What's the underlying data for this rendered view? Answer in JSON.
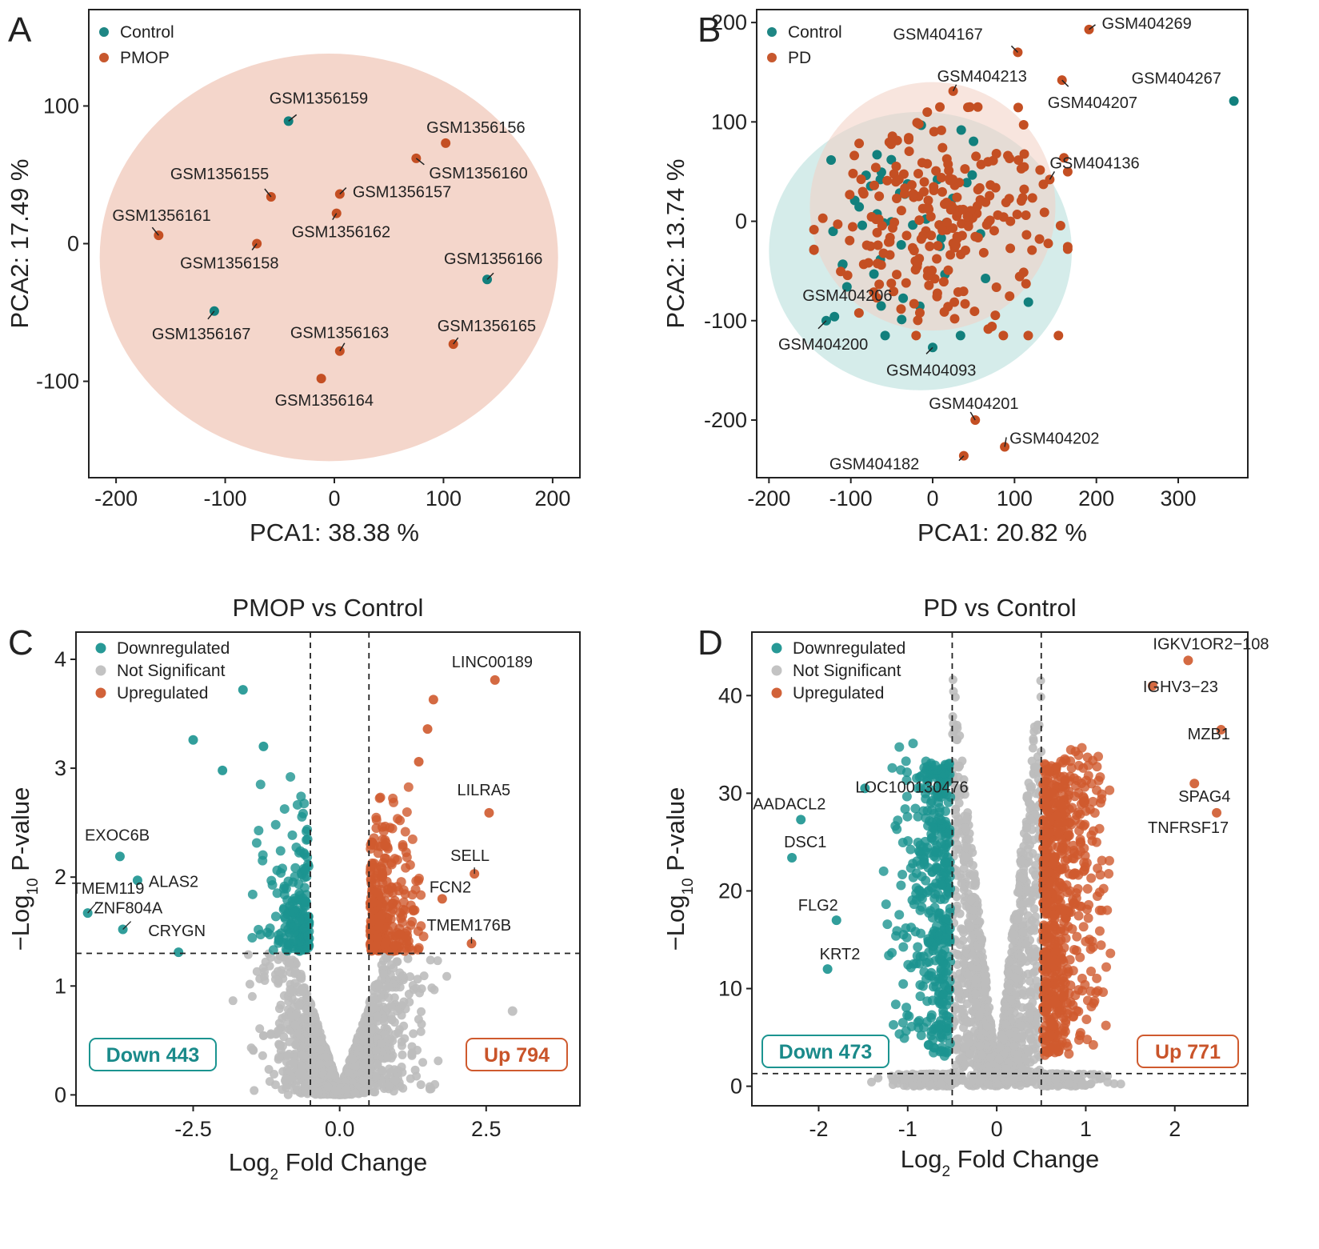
{
  "colors": {
    "control": "#12807d",
    "case": "#c44f23",
    "down": "#1b9490",
    "up": "#cf5a2e",
    "ns": "#bdbdbd",
    "ellipse_case": "#f2cfc2",
    "ellipse_control": "#b3dcd8"
  },
  "chart_data": [
    {
      "panel": "A",
      "type": "scatter",
      "xlabel": "PCA1: 38.38 %",
      "ylabel": "PCA2: 17.49 %",
      "xlim": [
        -225,
        225
      ],
      "ylim": [
        -170,
        170
      ],
      "xticks": [
        "-200",
        "-100",
        "0",
        "100",
        "200"
      ],
      "xtick_values": [
        -200,
        -100,
        0,
        100,
        200
      ],
      "yticks": [
        "-100",
        "0",
        "100"
      ],
      "ytick_values": [
        -100,
        0,
        100
      ],
      "legend": [
        {
          "name": "Control",
          "group": "control"
        },
        {
          "name": "PMOP",
          "group": "case"
        }
      ],
      "ellipses": [
        {
          "group": "case",
          "cx": -5,
          "cy": -10,
          "rx": 210,
          "ry": 148
        }
      ],
      "points": [
        {
          "x": -42,
          "y": 89,
          "group": "control",
          "label": "GSM1356159"
        },
        {
          "x": 102,
          "y": 73,
          "group": "case",
          "label": "GSM1356156"
        },
        {
          "x": 75,
          "y": 62,
          "group": "case",
          "label": "GSM1356160"
        },
        {
          "x": -58,
          "y": 34,
          "group": "case",
          "label": "GSM1356155"
        },
        {
          "x": 5,
          "y": 36,
          "group": "case",
          "label": "GSM1356157"
        },
        {
          "x": 2,
          "y": 22,
          "group": "case",
          "label": "GSM1356162"
        },
        {
          "x": -161,
          "y": 6,
          "group": "case",
          "label": "GSM1356161"
        },
        {
          "x": -71,
          "y": 0,
          "group": "case",
          "label": "GSM1356158"
        },
        {
          "x": 140,
          "y": -26,
          "group": "control",
          "label": "GSM1356166"
        },
        {
          "x": -110,
          "y": -49,
          "group": "control",
          "label": "GSM1356167"
        },
        {
          "x": 5,
          "y": -78,
          "group": "case",
          "label": "GSM1356163"
        },
        {
          "x": 109,
          "y": -73,
          "group": "case",
          "label": "GSM1356165"
        },
        {
          "x": -12,
          "y": -98,
          "group": "case",
          "label": "GSM1356164"
        }
      ]
    },
    {
      "panel": "B",
      "type": "scatter",
      "xlabel": "PCA1: 20.82 %",
      "ylabel": "PCA2: 13.74 %",
      "xlim": [
        -215,
        385
      ],
      "ylim": [
        -258,
        213
      ],
      "xticks": [
        "-200",
        "-100",
        "0",
        "100",
        "200",
        "300"
      ],
      "xtick_values": [
        -200,
        -100,
        0,
        100,
        200,
        300
      ],
      "yticks": [
        "-200",
        "-100",
        "0",
        "100",
        "200"
      ],
      "ytick_values": [
        -200,
        -100,
        0,
        100,
        200
      ],
      "legend": [
        {
          "name": "Control",
          "group": "control"
        },
        {
          "name": "PD",
          "group": "case"
        }
      ],
      "ellipses": [
        {
          "group": "control",
          "cx": -15,
          "cy": -30,
          "rx": 185,
          "ry": 140
        },
        {
          "group": "case",
          "cx": 0,
          "cy": 15,
          "rx": 150,
          "ry": 125
        }
      ],
      "labeled_points": [
        {
          "x": 104,
          "y": 170,
          "group": "case",
          "label": "GSM404167"
        },
        {
          "x": 191,
          "y": 193,
          "group": "case",
          "label": "GSM404269"
        },
        {
          "x": 25,
          "y": 131,
          "group": "case",
          "label": "GSM404213"
        },
        {
          "x": 158,
          "y": 142,
          "group": "case",
          "label": "GSM404207"
        },
        {
          "x": 368,
          "y": 121,
          "group": "control",
          "label": "GSM404267"
        },
        {
          "x": 143,
          "y": 42,
          "group": "case",
          "label": "GSM404136"
        },
        {
          "x": -120,
          "y": -96,
          "group": "control",
          "label": "GSM404206"
        },
        {
          "x": -130,
          "y": -100,
          "group": "control",
          "label": "GSM404200"
        },
        {
          "x": 0,
          "y": -127,
          "group": "control",
          "label": "GSM404093"
        },
        {
          "x": 52,
          "y": -200,
          "group": "case",
          "label": "GSM404201"
        },
        {
          "x": 88,
          "y": -227,
          "group": "case",
          "label": "GSM404202"
        },
        {
          "x": 38,
          "y": -236,
          "group": "case",
          "label": "GSM404182"
        }
      ],
      "point_counts": {
        "case": 235,
        "control": 45
      },
      "case_cloud": {
        "x_mean": 0,
        "x_sd": 65,
        "y_mean": 5,
        "y_sd": 52
      },
      "control_cloud": {
        "x_mean": -40,
        "x_sd": 70,
        "y_mean": -10,
        "y_sd": 55
      }
    },
    {
      "panel": "C",
      "type": "scatter",
      "title": "PMOP vs Control",
      "xlabel": "Log2 Fold Change",
      "ylabel": "-Log10 P-value",
      "xlim": [
        -4.5,
        4.1
      ],
      "ylim": [
        -0.1,
        4.25
      ],
      "xticks": [
        "-2.5",
        "0.0",
        "2.5"
      ],
      "xtick_values": [
        -2.5,
        0,
        2.5
      ],
      "yticks": [
        "0",
        "1",
        "2",
        "3",
        "4"
      ],
      "ytick_values": [
        0,
        1,
        2,
        3,
        4
      ],
      "fc_threshold": 0.5,
      "p_threshold_log": 1.3,
      "legend": [
        {
          "name": "Downregulated",
          "group": "down"
        },
        {
          "name": "Not Significant",
          "group": "ns"
        },
        {
          "name": "Upregulated",
          "group": "up"
        }
      ],
      "counts": {
        "down_label": "Down 443",
        "up_label": "Up 794"
      },
      "point_counts": {
        "down": 200,
        "up": 300,
        "ns": 1600
      },
      "labeled_points": [
        {
          "x": 2.65,
          "y": 3.81,
          "group": "up",
          "label": "LINC00189"
        },
        {
          "x": 2.55,
          "y": 2.59,
          "group": "up",
          "label": "LILRA5"
        },
        {
          "x": 2.3,
          "y": 2.03,
          "group": "up",
          "label": "SELL"
        },
        {
          "x": 1.75,
          "y": 1.8,
          "group": "up",
          "label": "FCN2"
        },
        {
          "x": 2.25,
          "y": 1.39,
          "group": "up",
          "label": "TMEM176B"
        },
        {
          "x": -3.75,
          "y": 2.19,
          "group": "down",
          "label": "EXOC6B"
        },
        {
          "x": -3.45,
          "y": 1.97,
          "group": "down",
          "label": "ALAS2"
        },
        {
          "x": -4.3,
          "y": 1.67,
          "group": "down",
          "label": "TMEM119"
        },
        {
          "x": -3.7,
          "y": 1.52,
          "group": "down",
          "label": "ZNF804A"
        },
        {
          "x": -2.75,
          "y": 1.31,
          "group": "down",
          "label": "CRYGN"
        }
      ],
      "extra_points": [
        {
          "x": -1.65,
          "y": 3.72,
          "group": "down"
        },
        {
          "x": -2.5,
          "y": 3.26,
          "group": "down"
        },
        {
          "x": -1.3,
          "y": 3.2,
          "group": "down"
        },
        {
          "x": -2.0,
          "y": 2.98,
          "group": "down"
        },
        {
          "x": 1.6,
          "y": 3.63,
          "group": "up"
        },
        {
          "x": 1.5,
          "y": 3.36,
          "group": "up"
        },
        {
          "x": 1.35,
          "y": 3.06,
          "group": "up"
        },
        {
          "x": 2.95,
          "y": 0.77,
          "group": "ns"
        }
      ]
    },
    {
      "panel": "D",
      "type": "scatter",
      "title": "PD vs Control",
      "xlabel": "Log2 Fold Change",
      "ylabel": "-Log10 P-value",
      "xlim": [
        -2.75,
        2.82
      ],
      "ylim": [
        -2,
        46.5
      ],
      "xticks": [
        "-2",
        "-1",
        "0",
        "1",
        "2"
      ],
      "xtick_values": [
        -2,
        -1,
        0,
        1,
        2
      ],
      "yticks": [
        "0",
        "10",
        "20",
        "30",
        "40"
      ],
      "ytick_values": [
        0,
        10,
        20,
        30,
        40
      ],
      "fc_threshold": 0.5,
      "p_threshold_log": 1.3,
      "legend": [
        {
          "name": "Downregulated",
          "group": "down"
        },
        {
          "name": "Not Significant",
          "group": "ns"
        },
        {
          "name": "Upregulated",
          "group": "up"
        }
      ],
      "counts": {
        "down_label": "Down 473",
        "up_label": "Up 771"
      },
      "point_counts": {
        "down": 420,
        "up": 650,
        "ns": 1800
      },
      "labeled_points": [
        {
          "x": 2.15,
          "y": 43.6,
          "group": "up",
          "label": "IGKV1OR2−108"
        },
        {
          "x": 1.75,
          "y": 41.0,
          "group": "up",
          "label": "IGHV3−23"
        },
        {
          "x": 2.52,
          "y": 36.5,
          "group": "up",
          "label": "MZB1"
        },
        {
          "x": 2.22,
          "y": 31.0,
          "group": "up",
          "label": "SPAG4"
        },
        {
          "x": 2.47,
          "y": 28.0,
          "group": "up",
          "label": "TNFRSF17"
        },
        {
          "x": -1.48,
          "y": 30.5,
          "group": "down",
          "label": "LOC100130476"
        },
        {
          "x": -2.2,
          "y": 27.3,
          "group": "down",
          "label": "AADACL2"
        },
        {
          "x": -2.3,
          "y": 23.4,
          "group": "down",
          "label": "DSC1"
        },
        {
          "x": -1.8,
          "y": 17.0,
          "group": "down",
          "label": "FLG2"
        },
        {
          "x": -1.9,
          "y": 12.0,
          "group": "down",
          "label": "KRT2"
        }
      ]
    }
  ]
}
